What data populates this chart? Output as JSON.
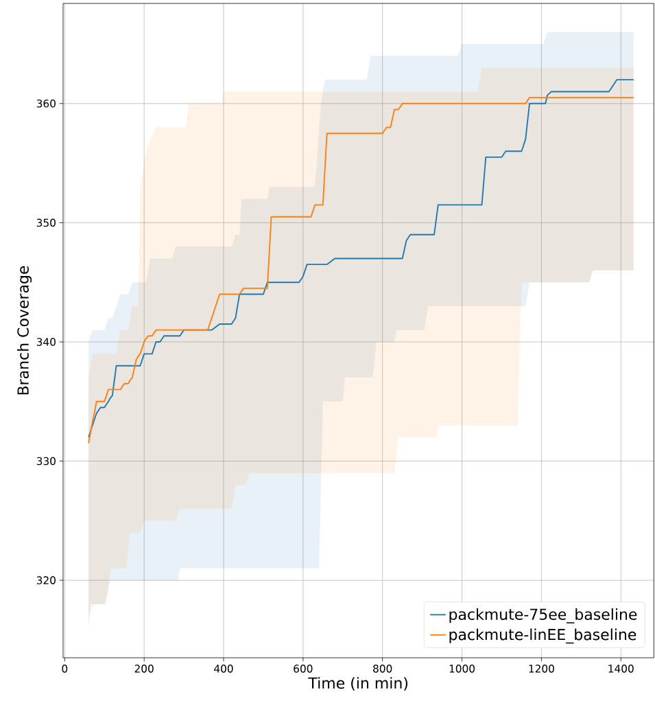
{
  "chart_data": {
    "type": "line",
    "xlabel": "Time (in min)",
    "ylabel": "Branch Coverage",
    "xlim": [
      -4,
      1483
    ],
    "ylim": [
      313.5,
      368.4
    ],
    "xticks": [
      0,
      200,
      400,
      600,
      800,
      1000,
      1200,
      1400
    ],
    "yticks": [
      320,
      330,
      340,
      350,
      360
    ],
    "grid": true,
    "legend": "bottom right",
    "marker": "none",
    "line_style": "solid",
    "series": [
      {
        "name": "packmute-75ee_baseline",
        "color": "#1f77b4",
        "x": [
          60,
          65,
          70,
          75,
          80,
          90,
          100,
          110,
          115,
          120,
          130,
          140,
          160,
          170,
          190,
          200,
          205,
          215,
          220,
          230,
          240,
          250,
          270,
          280,
          285,
          290,
          300,
          370,
          390,
          420,
          430,
          440,
          445,
          500,
          510,
          515,
          590,
          600,
          610,
          630,
          640,
          645,
          650,
          655,
          660,
          680,
          700,
          705,
          760,
          770,
          775,
          785,
          830,
          835,
          850,
          860,
          870,
          905,
          915,
          930,
          940,
          990,
          1000,
          1050,
          1060,
          1100,
          1110,
          1150,
          1160,
          1170,
          1205,
          1210,
          1215,
          1225,
          1320,
          1330,
          1370,
          1390,
          1432
        ],
        "values": [
          332,
          332.5,
          333,
          333.5,
          334,
          334.5,
          334.5,
          335,
          335.3,
          335.5,
          338,
          338,
          338,
          338,
          338,
          339,
          339,
          339,
          339,
          340,
          340,
          340.5,
          340.5,
          340.5,
          340.5,
          340.5,
          341,
          341,
          341.5,
          341.5,
          342,
          344,
          344,
          344,
          345,
          345,
          345,
          345.5,
          346.5,
          346.5,
          346.5,
          346.5,
          346.5,
          346.5,
          346.5,
          347,
          347,
          347,
          347,
          347,
          347,
          347,
          347,
          347,
          347,
          348.5,
          349,
          349,
          349,
          349,
          351.5,
          351.5,
          351.5,
          351.5,
          355.5,
          355.5,
          356,
          356,
          357,
          360,
          360,
          360,
          360.7,
          361,
          361,
          361,
          361,
          362,
          362
        ],
        "lower": [
          316,
          318,
          318,
          318,
          318,
          318,
          318,
          319.3,
          320,
          320,
          320,
          320,
          320,
          320,
          320,
          320,
          320,
          320,
          320,
          320,
          320,
          320,
          320,
          320,
          320,
          321,
          321,
          321,
          321,
          321,
          321,
          321,
          321,
          321,
          321,
          321,
          321,
          321,
          321,
          321,
          321,
          328,
          335,
          335,
          335,
          335,
          335,
          337,
          337,
          337,
          337,
          340,
          340,
          341,
          341,
          341,
          341,
          341,
          343,
          343,
          343,
          343,
          343,
          343,
          343,
          343,
          343,
          343,
          343,
          345,
          345,
          345,
          345,
          345,
          345,
          346,
          346,
          346,
          346
        ],
        "upper": [
          340,
          340.5,
          341,
          341,
          341,
          341,
          341,
          342,
          342,
          342,
          343,
          344,
          344,
          345,
          345,
          345,
          345,
          347,
          347,
          347,
          347,
          347,
          347,
          348,
          348,
          348,
          348,
          348,
          348,
          348,
          349,
          349,
          352,
          352,
          352,
          353,
          353,
          353,
          353,
          353,
          357.7,
          360,
          361,
          362,
          362,
          362,
          362,
          362,
          362,
          364,
          364,
          364,
          364,
          364,
          364,
          364,
          364,
          364,
          364,
          364,
          364,
          364,
          365,
          365,
          365,
          365,
          365,
          365,
          365,
          365,
          365,
          365.5,
          366,
          366,
          366,
          366,
          366,
          366,
          366
        ]
      },
      {
        "name": "packmute-linEE_baseline",
        "color": "#ff7f0e",
        "x": [
          60,
          70,
          75,
          80,
          100,
          105,
          110,
          115,
          130,
          140,
          150,
          155,
          160,
          165,
          170,
          180,
          185,
          190,
          200,
          205,
          210,
          215,
          220,
          230,
          280,
          290,
          305,
          312,
          360,
          390,
          395,
          400,
          420,
          430,
          440,
          450,
          455,
          465,
          510,
          520,
          620,
          630,
          650,
          660,
          800,
          810,
          820,
          830,
          840,
          850,
          935,
          940,
          1040,
          1050,
          1140,
          1150,
          1160,
          1170,
          1320,
          1330,
          1432
        ],
        "values": [
          331.5,
          333.3,
          334.1,
          335,
          335,
          335.5,
          336,
          336,
          336,
          336,
          336.5,
          336.5,
          336.5,
          336.8,
          337,
          338.5,
          338.8,
          339,
          340,
          340.3,
          340.5,
          340.5,
          340.5,
          341,
          341,
          341,
          341,
          341,
          341,
          344,
          344,
          344,
          344,
          344,
          344,
          344.5,
          344.5,
          344.5,
          344.5,
          350.5,
          350.5,
          351.5,
          351.5,
          357.5,
          357.5,
          358,
          358,
          359.5,
          359.5,
          360,
          360,
          360,
          360,
          360,
          360,
          360,
          360,
          360.5,
          360.5,
          360.5,
          360.5
        ],
        "lower": [
          317,
          317.7,
          318,
          318,
          318,
          318,
          319.5,
          321,
          321,
          321,
          321,
          321,
          322.5,
          324,
          324,
          324,
          324,
          324,
          325,
          325,
          325,
          325,
          325,
          325,
          325,
          326,
          326,
          326,
          326,
          326,
          326,
          326,
          326,
          328,
          328,
          328,
          328,
          329,
          329,
          329,
          329,
          329,
          329,
          329,
          329,
          329,
          329,
          329,
          332,
          332,
          332,
          333,
          333,
          333,
          333,
          345,
          345,
          345,
          345,
          346,
          346
        ],
        "upper": [
          337,
          339,
          339,
          339,
          339,
          339,
          339,
          339,
          339,
          341,
          341,
          341,
          341,
          342,
          343,
          343,
          343,
          353,
          355,
          356,
          356.5,
          357,
          357.3,
          358,
          358,
          358,
          358,
          360,
          360,
          360,
          360,
          361,
          361,
          361,
          361,
          361,
          361,
          361,
          361,
          361,
          361,
          361,
          361,
          361,
          361,
          361,
          361,
          361,
          361,
          361,
          361,
          361,
          361,
          363,
          363,
          363,
          363,
          363,
          363,
          363,
          363
        ]
      }
    ]
  }
}
